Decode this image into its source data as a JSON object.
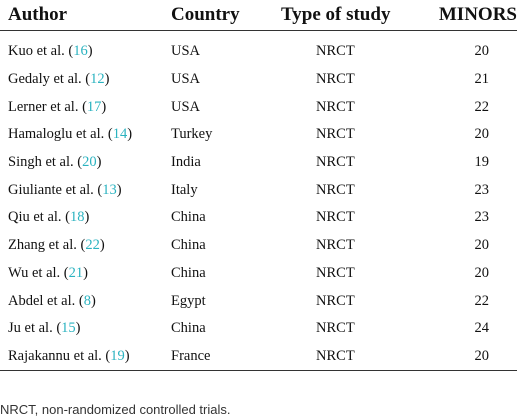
{
  "headers": {
    "author": "Author",
    "country": "Country",
    "type_of_study": "Type of study",
    "minors": "MINORS"
  },
  "rows": [
    {
      "author": "Kuo et al. (",
      "ref": "16",
      "close": ")",
      "country": "USA",
      "type": "NRCT",
      "minors": "20"
    },
    {
      "author": "Gedaly et al. (",
      "ref": "12",
      "close": ")",
      "country": "USA",
      "type": "NRCT",
      "minors": "21"
    },
    {
      "author": "Lerner et al. (",
      "ref": "17",
      "close": ")",
      "country": "USA",
      "type": "NRCT",
      "minors": "22"
    },
    {
      "author": "Hamaloglu et al. (",
      "ref": "14",
      "close": ")",
      "country": "Turkey",
      "type": "NRCT",
      "minors": "20"
    },
    {
      "author": "Singh et al. (",
      "ref": "20",
      "close": ")",
      "country": "India",
      "type": "NRCT",
      "minors": "19"
    },
    {
      "author": "Giuliante et al. (",
      "ref": "13",
      "close": ")",
      "country": "Italy",
      "type": "NRCT",
      "minors": "23"
    },
    {
      "author": "Qiu et al. (",
      "ref": "18",
      "close": ")",
      "country": "China",
      "type": "NRCT",
      "minors": "23"
    },
    {
      "author": "Zhang et al. (",
      "ref": "22",
      "close": ")",
      "country": "China",
      "type": "NRCT",
      "minors": "20"
    },
    {
      "author": "Wu et al. (",
      "ref": "21",
      "close": ")",
      "country": "China",
      "type": "NRCT",
      "minors": "20"
    },
    {
      "author": "Abdel et al. (",
      "ref": "8",
      "close": ")",
      "country": "Egypt",
      "type": "NRCT",
      "minors": "22"
    },
    {
      "author": "Ju et al. (",
      "ref": "15",
      "close": ")",
      "country": "China",
      "type": "NRCT",
      "minors": "24"
    },
    {
      "author": "Rajakannu et al. (",
      "ref": "19",
      "close": ")",
      "country": "France",
      "type": "NRCT",
      "minors": "20"
    }
  ],
  "footnote": "NRCT, non-randomized controlled trials.",
  "colors": {
    "reference_link": "#2bb3c0",
    "text": "#111111"
  }
}
